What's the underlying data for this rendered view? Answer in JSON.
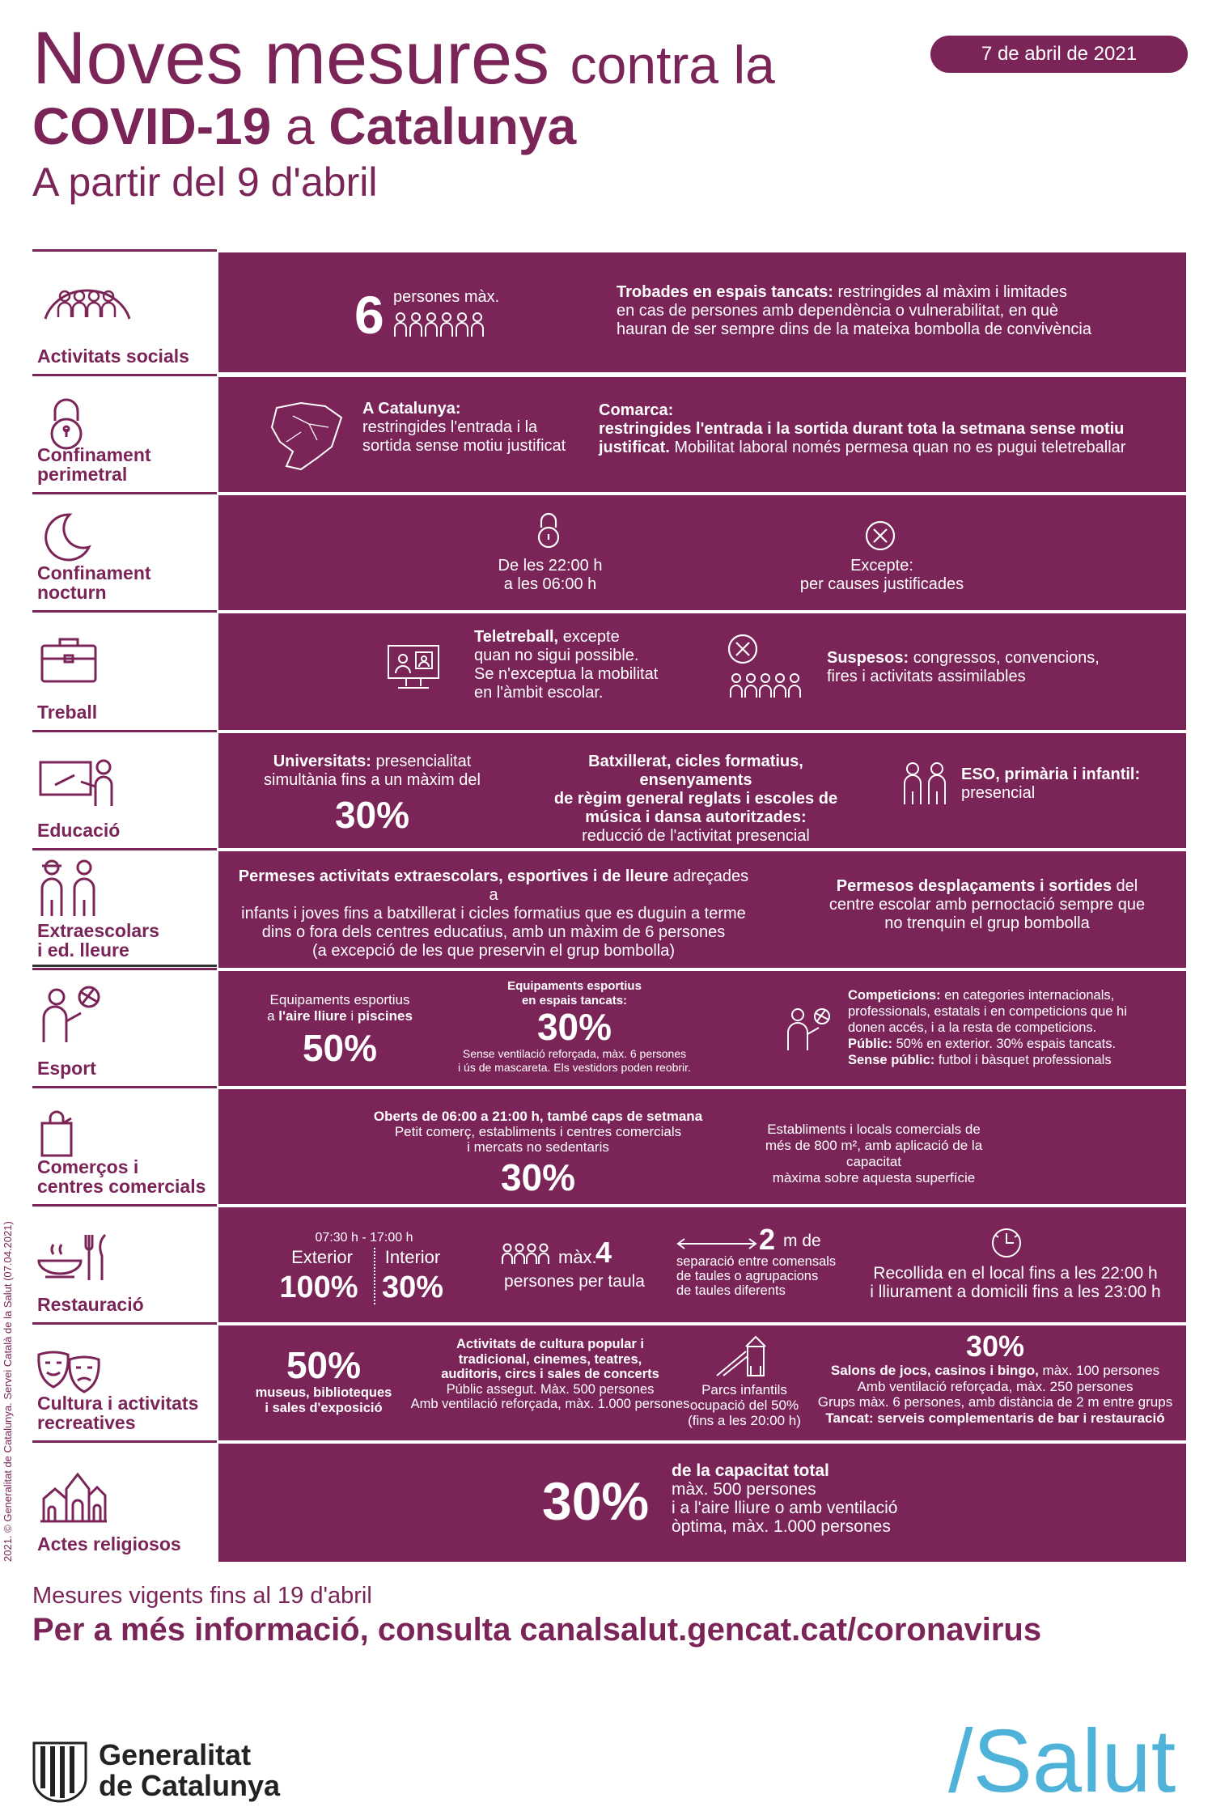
{
  "header": {
    "title_big": "Noves mesures",
    "title_small": "contra la",
    "title2_bold1": "COVID-19",
    "title2_light": "a",
    "title2_bold2": "Catalunya",
    "subtitle": "A partir del 9 d'abril",
    "date": "7 de abril de 2021"
  },
  "rows": {
    "social": {
      "label": "Activitats socials",
      "icon": "group-icon",
      "number": "6",
      "number_caption": "persones màx.",
      "text_bold": "Trobades en espais tancats:",
      "text_l1": "restringides al màxim i limitades",
      "text_l2": "en cas de persones amb dependència o vulnerabilitat, en què",
      "text_l3": "hauran de ser sempre dins de la mateixa bombolla de convivència"
    },
    "perimetral": {
      "label_l1": "Confinament",
      "label_l2": "perimetral",
      "icon": "lock-icon",
      "map_icon": "catalonia-map-icon",
      "cat_bold": "A Catalunya:",
      "cat_l1": "restringides l'entrada i la",
      "cat_l2": "sortida sense motiu justificat",
      "com_bold": "Comarca:",
      "com_bold2": "restringides l'entrada i la sortida durant tota la setmana sense motiu",
      "com_bold3": "justificat.",
      "com_rest": "Mobilitat laboral només permesa quan no es pugui teletreballar"
    },
    "nocturn": {
      "label_l1": "Confinament",
      "label_l2": "nocturn",
      "icon": "moon-icon",
      "time_l1": "De les 22:00 h",
      "time_l2": "a les 06:00 h",
      "exc_l1": "Excepte:",
      "exc_l2": "per causes justificades"
    },
    "treball": {
      "label": "Treball",
      "icon": "briefcase-icon",
      "tele_bold": "Teletreball,",
      "tele_l1": "excepte",
      "tele_l2": "quan no sigui possible.",
      "tele_l3": "Se n'exceptua la mobilitat",
      "tele_l4": "en l'àmbit escolar.",
      "susp_bold": "Suspesos:",
      "susp_l1": "congressos, convencions,",
      "susp_l2": "fires i activitats assimilables"
    },
    "educacio": {
      "label": "Educació",
      "icon": "teacher-board-icon",
      "uni_bold": "Universitats:",
      "uni_l1": "presencialitat",
      "uni_l2": "simultània fins a un màxim del",
      "uni_pct": "30%",
      "bat_l1": "Batxillerat, cicles formatius, ensenyaments",
      "bat_l2": "de règim general reglats i escoles de",
      "bat_l3": "música i dansa autoritzades:",
      "bat_l4": "reducció de l'activitat presencial",
      "eso_bold": "ESO, primària i infantil:",
      "eso_l1": "presencial"
    },
    "extra": {
      "label_l1": "Extraescolars",
      "label_l2": "i ed. lleure",
      "icon": "children-icon",
      "a_bold": "Permeses activitats extraescolars, esportives i de lleure",
      "a_l1": "adreçades a",
      "a_l2": "infants i joves fins a batxillerat i cicles formatius que es duguin a terme",
      "a_l3": "dins o fora dels centres educatius, amb un màxim de 6 persones",
      "a_l4": "(a excepció de les que preservin el grup bombolla)",
      "b_bold": "Permesos desplaçaments i sortides",
      "b_l1": "del",
      "b_l2": "centre escolar amb pernoctació sempre que",
      "b_l3": "no trenquin el grup bombolla"
    },
    "esport": {
      "label": "Esport",
      "icon": "ball-player-icon",
      "ext_l1": "Equipaments esportius",
      "ext_l2a": "a",
      "ext_l2b": "l'aire lliure",
      "ext_l2c": "i",
      "ext_l2d": "piscines",
      "ext_pct": "50%",
      "int_l1": "Equipaments esportius",
      "int_l2": "en espais tancats:",
      "int_pct": "30%",
      "int_n1": "Sense ventilació reforçada, màx. 6 persones",
      "int_n2": "i ús de mascareta. Els vestidors poden reobrir.",
      "comp_b1": "Competicions:",
      "comp_l1": "en categories internacionals,",
      "comp_l2": "professionals, estatals i en competicions que hi",
      "comp_l3": "donen accés, i a la resta de competicions.",
      "comp_b2": "Públic:",
      "comp_l4": "50% en exterior. 30% espais tancats.",
      "comp_b3": "Sense públic:",
      "comp_l5": "futbol i bàsquet professionals"
    },
    "comerc": {
      "label_l1": "Comerços i",
      "label_l2": "centres comercials",
      "icon": "shopping-bag-icon",
      "open_bold": "Oberts de 06:00 a 21:00 h, també caps de setmana",
      "open_l1": "Petit comerç, establiments i centres comercials",
      "open_l2": "i mercats no sedentaris",
      "open_pct": "30%",
      "est_l1": "Establiments i locals comercials de",
      "est_l2": "més de 800 m², amb aplicació de la capacitat",
      "est_l3": "màxima sobre aquesta superfície"
    },
    "restauracio": {
      "label": "Restauració",
      "icon": "cutlery-icon",
      "hours": "07:30 h - 17:00 h",
      "ext_label": "Exterior",
      "ext_pct": "100%",
      "int_label": "Interior",
      "int_pct": "30%",
      "max_label": "màx.",
      "max_num": "4",
      "max_caption": "persones per taula",
      "dist_num": "2",
      "dist_unit": "m de",
      "dist_l1": "separació entre comensals",
      "dist_l2": "de taules o agrupacions",
      "dist_l3": "de taules diferents",
      "rec_l1": "Recollida en el local fins a les 22:00 h",
      "rec_l2": "i lliurament a domicili fins a les 23:00 h"
    },
    "cultura": {
      "label_l1": "Cultura i activitats",
      "label_l2": "recreatives",
      "icon": "theatre-masks-icon",
      "mus_pct": "50%",
      "mus_l1": "museus, biblioteques",
      "mus_l2": "i sales d'exposició",
      "act_l1": "Activitats de cultura popular i",
      "act_l2": "tradicional, cinemes, teatres,",
      "act_l3": "auditoris, circs i sales de concerts",
      "act_l4": "Públic assegut. Màx. 500 persones",
      "act_l5": "Amb ventilació reforçada, màx. 1.000 persones",
      "parc_l1": "Parcs infantils",
      "parc_l2": "ocupació del 50%",
      "parc_l3": "(fins a les 20:00 h)",
      "sal_pct": "30%",
      "sal_bold": "Salons de jocs, casinos i bingo,",
      "sal_l1": "màx. 100 persones",
      "sal_l2": "Amb ventilació reforçada, màx. 250 persones",
      "sal_l3": "Grups màx. 6 persones, amb distància de 2 m entre grups",
      "sal_l4": "Tancat: serveis complementaris de bar i restauració"
    },
    "religiosos": {
      "label": "Actes religiosos",
      "icon": "temple-icon",
      "pct": "30%",
      "l1": "de la capacitat total",
      "l2": "màx. 500 persones",
      "l3": "i a l'aire lliure o amb ventilació",
      "l4": "òptima, màx. 1.000 persones"
    }
  },
  "footer": {
    "validity": "Mesures vigents fins al 19 d'abril",
    "more_info": "Per a més informació, consulta canalsalut.gencat.cat/coronavirus",
    "copyright": "2021. © Generalitat de Catalunya. Servei Català de la Salut (07.04.2021)",
    "gen_l1": "Generalitat",
    "gen_l2": "de Catalunya",
    "salut": "/Salut"
  },
  "colors": {
    "primary": "#7a2458",
    "accent": "#4fb3d9"
  }
}
